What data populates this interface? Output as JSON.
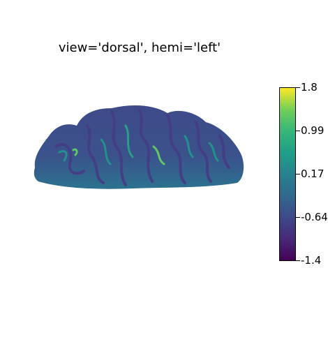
{
  "title": "view='dorsal', hemi='left'",
  "colorbar": {
    "colormap": "viridis",
    "ticks": [
      "1.8",
      "0.99",
      "0.17",
      "-0.64",
      "-1.4"
    ],
    "min": -1.4,
    "max": 1.8
  },
  "colors": {
    "background": "#ffffff",
    "brain_base": "#3b528b",
    "sulcus_dark": "#433e85",
    "gyrus_light": "#21918c",
    "highlight": "#5ec962"
  }
}
